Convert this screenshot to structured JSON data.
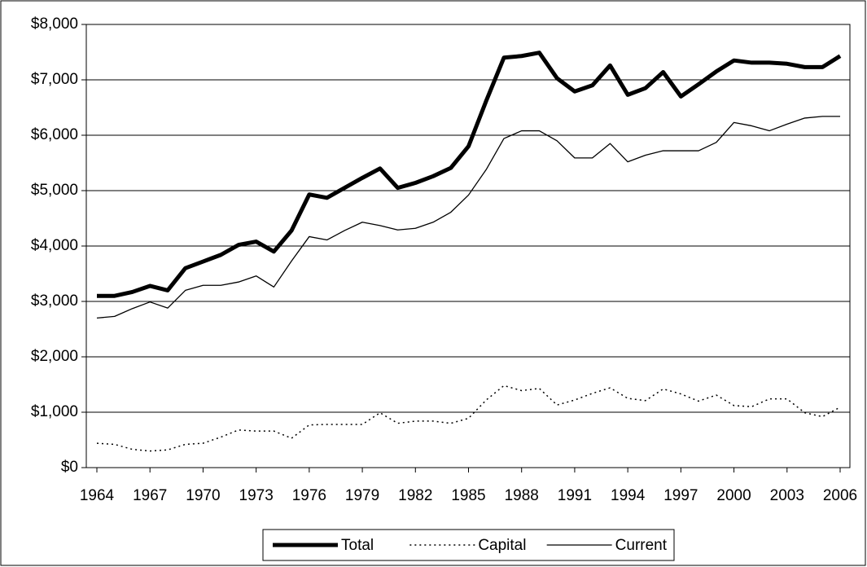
{
  "chart_data": {
    "type": "line",
    "x": [
      1964,
      1965,
      1966,
      1967,
      1968,
      1969,
      1970,
      1971,
      1972,
      1973,
      1974,
      1975,
      1976,
      1977,
      1978,
      1979,
      1980,
      1981,
      1982,
      1983,
      1984,
      1985,
      1986,
      1987,
      1988,
      1989,
      1990,
      1991,
      1992,
      1993,
      1994,
      1995,
      1996,
      1997,
      1998,
      1999,
      2000,
      2001,
      2002,
      2003,
      2004,
      2005,
      2006
    ],
    "xlim": [
      1964,
      2006
    ],
    "xticks": [
      1964,
      1967,
      1970,
      1973,
      1976,
      1979,
      1982,
      1985,
      1988,
      1991,
      1994,
      1997,
      2000,
      2003,
      2006
    ],
    "ylim": [
      0,
      8000
    ],
    "yticks": [
      {
        "value": 0,
        "label": "$0"
      },
      {
        "value": 1000,
        "label": "$1,000"
      },
      {
        "value": 2000,
        "label": "$2,000"
      },
      {
        "value": 3000,
        "label": "$3,000"
      },
      {
        "value": 4000,
        "label": "$4,000"
      },
      {
        "value": 5000,
        "label": "$5,000"
      },
      {
        "value": 6000,
        "label": "$6,000"
      },
      {
        "value": 7000,
        "label": "$7,000"
      },
      {
        "value": 8000,
        "label": "$8,000"
      }
    ],
    "grid": true,
    "legend": "bottom",
    "series": [
      {
        "name": "Total",
        "color": "#000000",
        "style": "thick",
        "values": [
          3100,
          3100,
          3170,
          3280,
          3200,
          3600,
          3720,
          3840,
          4020,
          4080,
          3900,
          4280,
          4930,
          4870,
          5050,
          5230,
          5400,
          5050,
          5140,
          5260,
          5410,
          5800,
          6620,
          7400,
          7430,
          7490,
          7030,
          6790,
          6900,
          7260,
          6730,
          6850,
          7140,
          6700,
          6920,
          7150,
          7350,
          7310,
          7310,
          7290,
          7230,
          7230,
          7430
        ]
      },
      {
        "name": "Capital",
        "color": "#000000",
        "style": "dotted",
        "values": [
          440,
          420,
          330,
          300,
          320,
          420,
          440,
          550,
          680,
          660,
          660,
          530,
          770,
          780,
          780,
          780,
          990,
          800,
          840,
          840,
          800,
          890,
          1220,
          1480,
          1390,
          1430,
          1130,
          1220,
          1340,
          1440,
          1250,
          1210,
          1420,
          1330,
          1200,
          1310,
          1120,
          1100,
          1240,
          1240,
          990,
          920,
          1090
        ]
      },
      {
        "name": "Current",
        "color": "#000000",
        "style": "thin",
        "values": [
          2700,
          2730,
          2870,
          2990,
          2880,
          3200,
          3290,
          3290,
          3350,
          3460,
          3260,
          3730,
          4170,
          4110,
          4280,
          4430,
          4370,
          4290,
          4320,
          4430,
          4610,
          4920,
          5380,
          5940,
          6080,
          6080,
          5900,
          5590,
          5590,
          5850,
          5520,
          5640,
          5720,
          5720,
          5720,
          5870,
          6230,
          6170,
          6080,
          6200,
          6310,
          6340,
          6340
        ]
      }
    ]
  }
}
